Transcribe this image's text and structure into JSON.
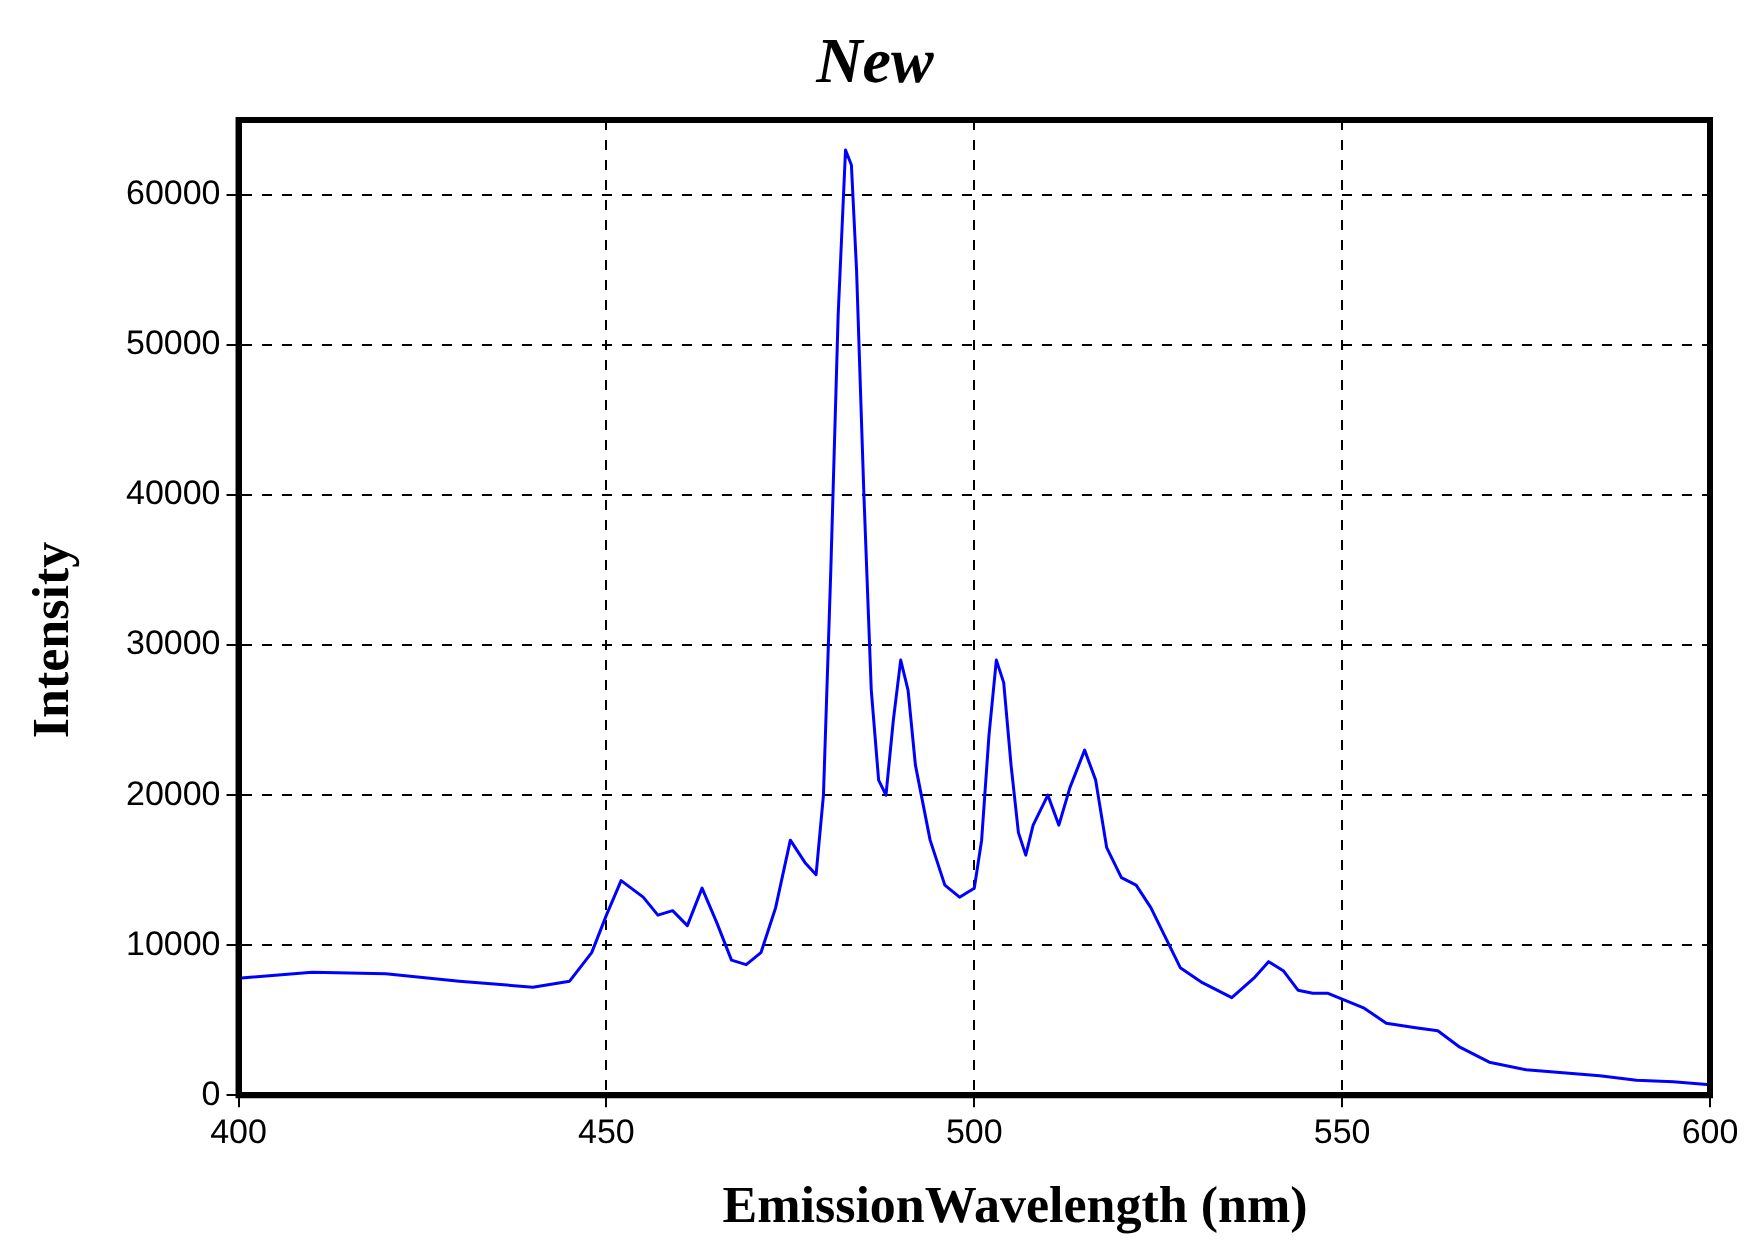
{
  "chart_data": {
    "type": "line",
    "title": "New",
    "xlabel": "EmissionWavelength (nm)",
    "ylabel": "Intensity",
    "x": [
      400,
      410,
      420,
      430,
      440,
      445,
      448,
      450,
      452,
      455,
      457,
      459,
      461,
      463,
      465,
      467,
      469,
      471,
      473,
      475,
      477,
      478.5,
      479.5,
      480.5,
      481.5,
      482.5,
      483.3,
      484,
      485,
      486,
      487,
      488,
      489,
      490,
      491,
      492,
      494,
      496,
      498,
      500,
      501,
      502,
      503,
      504,
      505,
      506,
      507,
      508,
      510,
      511.5,
      513,
      515,
      516.5,
      518,
      520,
      522,
      524,
      526,
      528,
      531,
      535,
      538,
      540,
      542,
      544,
      546,
      548,
      550,
      553,
      556,
      560,
      563,
      566,
      570,
      575,
      580,
      585,
      590,
      595,
      600
    ],
    "series": [
      {
        "color": "#0000ff",
        "values": [
          7800,
          8200,
          8100,
          7600,
          7200,
          7600,
          9500,
          12000,
          14300,
          13200,
          12000,
          12300,
          11300,
          13800,
          11500,
          9000,
          8700,
          9500,
          12500,
          17000,
          15500,
          14700,
          20000,
          35000,
          52000,
          63000,
          62000,
          55000,
          40000,
          27000,
          21000,
          20000,
          25000,
          29000,
          27000,
          22000,
          17000,
          14000,
          13200,
          13800,
          17000,
          24000,
          29000,
          27500,
          22000,
          17500,
          16000,
          18000,
          20000,
          18000,
          20500,
          23000,
          21000,
          16500,
          14500,
          14000,
          12500,
          10500,
          8500,
          7500,
          6500,
          7800,
          8900,
          8300,
          7000,
          6800,
          6800,
          6400,
          5800,
          4800,
          4500,
          4300,
          3200,
          2200,
          1700,
          1500,
          1300,
          1000,
          900,
          700
        ]
      }
    ],
    "xlim": [
      400,
      600
    ],
    "xticks": [
      400,
      450,
      500,
      550,
      600
    ],
    "ylim": [
      0,
      65000
    ],
    "yticks": [
      0,
      10000,
      20000,
      30000,
      40000,
      50000,
      60000
    ],
    "grid": true,
    "legend": false,
    "marker": "none",
    "line_style": "solid"
  }
}
